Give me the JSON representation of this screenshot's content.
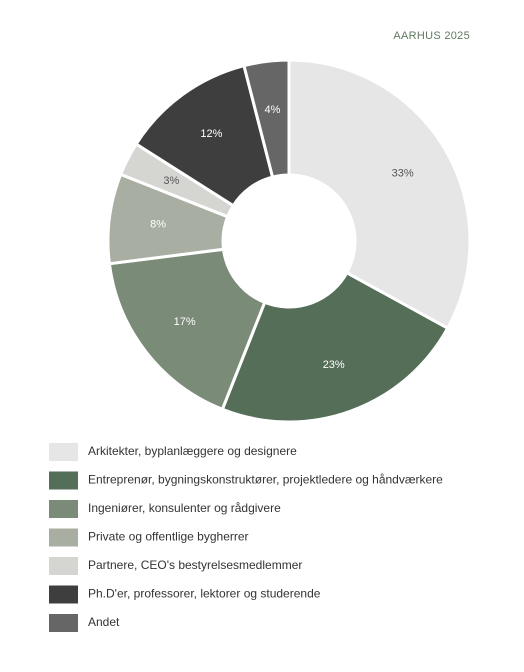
{
  "chart_data": {
    "type": "donut",
    "title": "AARHUS 2025",
    "categories": [
      "Arkitekter, byplanlæggere og designere",
      "Entreprenør, bygningskonstruktører, projektledere og håndværkere",
      "Ingeniører, konsulenter og rådgivere",
      "Private og offentlige bygherrer",
      "Partnere, CEO's bestyrelsesmedlemmer",
      "Ph.D'er, professorer, lektorer og studerende",
      "Andet"
    ],
    "values": [
      33,
      23,
      17,
      8,
      3,
      12,
      4
    ],
    "value_labels": [
      "33%",
      "23%",
      "17%",
      "8%",
      "3%",
      "12%",
      "4%"
    ],
    "colors": [
      "#e6e6e6",
      "#546e58",
      "#7a8b78",
      "#a8aea2",
      "#d5d6d2",
      "#3e3e3e",
      "#666666"
    ]
  }
}
